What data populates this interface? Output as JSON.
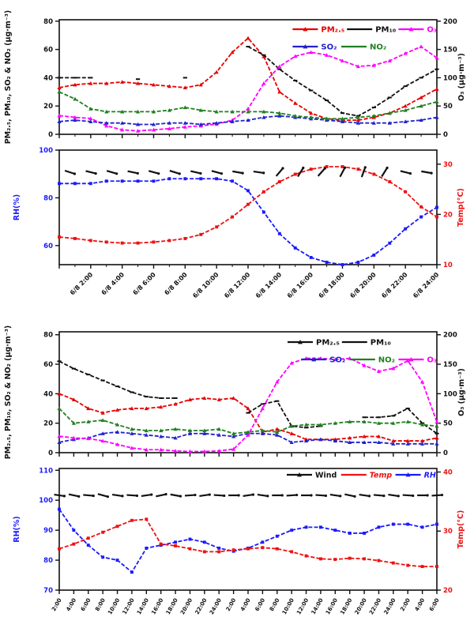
{
  "page": {
    "background": "#ffffff"
  },
  "chart_data": [
    {
      "id": "pollutants-day1",
      "type": "line",
      "title": "",
      "x_tick_labels": [
        "",
        "6/8 2:00",
        "6/8 4:00",
        "6/8 6:00",
        "6/8 8:00",
        "6/8 10:00",
        "6/8 12:00",
        "6/8 14:00",
        "6/8 16:00",
        "6/8 18:00",
        "6/8 20:00",
        "6/8 22:00",
        "6/8 24:00"
      ],
      "left_axis": {
        "title": "PM₂.₅, PM₁₀, SO₂ & NO₂ (μg·m⁻³)",
        "color": "#111111",
        "min": 0,
        "max": 81,
        "ticks": [
          0,
          20,
          40,
          60,
          80
        ]
      },
      "right_axis": {
        "title": "O₃ (μg·m⁻³)",
        "color": "#111111",
        "min": 0,
        "max": 202.5,
        "ticks": [
          0,
          50,
          100,
          150,
          200
        ]
      },
      "series": [
        {
          "name": "PM₂.₅",
          "axis": "left",
          "color": "#e60000",
          "marker": "tri",
          "values": [
            33,
            35,
            36,
            36,
            37,
            36,
            35,
            34,
            33,
            35,
            44,
            58,
            68,
            55,
            30,
            22,
            15,
            11,
            10,
            10,
            12,
            15,
            20,
            26,
            32
          ]
        },
        {
          "name": "PM₁₀",
          "axis": "left",
          "color": "#111111",
          "marker": "dash",
          "values": [
            40,
            40,
            40,
            null,
            null,
            39,
            null,
            null,
            40,
            null,
            null,
            null,
            62,
            56,
            46,
            38,
            31,
            24,
            15,
            13,
            19,
            26,
            34,
            40,
            46
          ]
        },
        {
          "name": "O₃",
          "axis": "right",
          "color": "#ff00ff",
          "marker": "tri",
          "values": [
            33,
            30,
            28,
            15,
            8,
            6,
            8,
            10,
            13,
            15,
            18,
            25,
            45,
            90,
            120,
            138,
            145,
            140,
            130,
            120,
            122,
            130,
            143,
            155,
            135
          ]
        },
        {
          "name": "SO₂",
          "axis": "left",
          "color": "#2222cc",
          "marker": "tri",
          "values": [
            9,
            10,
            9,
            8,
            8,
            7,
            7,
            8,
            8,
            7,
            8,
            9,
            10,
            12,
            13,
            12,
            11,
            10,
            9,
            8,
            8,
            8,
            9,
            10,
            12
          ]
        },
        {
          "name": "NO₂",
          "axis": "left",
          "color": "#208020",
          "marker": "tri",
          "values": [
            30,
            25,
            18,
            16,
            16,
            16,
            16,
            17,
            19,
            17,
            16,
            16,
            16,
            16,
            15,
            13,
            12,
            11,
            11,
            12,
            13,
            15,
            17,
            20,
            23
          ]
        }
      ],
      "legend": {
        "rows": [
          {
            "items": [
              {
                "label": "PM₂.₅",
                "color": "#e60000",
                "marker": "tri"
              },
              {
                "label": "PM₁₀",
                "color": "#111111",
                "marker": "none"
              },
              {
                "label": "O₃",
                "color": "#ff00ff",
                "marker": "tri"
              }
            ]
          },
          {
            "items": [
              {
                "label": "SO₂",
                "color": "#2222cc",
                "marker": "tri"
              },
              {
                "label": "NO₂",
                "color": "#208020",
                "marker": "none"
              }
            ]
          }
        ]
      }
    },
    {
      "id": "meteorology-day1",
      "type": "line",
      "x_tick_labels": [
        "",
        "6/8 2:00",
        "6/8 4:00",
        "6/8 6:00",
        "6/8 8:00",
        "6/8 10:00",
        "6/8 12:00",
        "6/8 14:00",
        "6/8 16:00",
        "6/8 18:00",
        "6/8 20:00",
        "6/8 22:00",
        "6/8 24:00"
      ],
      "left_axis": {
        "title": "RH(%)",
        "color": "#1a1aff",
        "min": 52,
        "max": 100,
        "ticks": [
          60,
          80,
          100
        ]
      },
      "right_axis": {
        "title": "Temp(°C)",
        "color": "#ee1111",
        "min": 10,
        "max": 32.8,
        "ticks": [
          10,
          20,
          30
        ]
      },
      "series": [
        {
          "name": "RH",
          "axis": "left",
          "color": "#1a1aff",
          "marker": "sq",
          "values": [
            86,
            86,
            86,
            87,
            87,
            87,
            87,
            88,
            88,
            88,
            88,
            87,
            83,
            74,
            65,
            59,
            55,
            53,
            52,
            53,
            56,
            61,
            67,
            72,
            76
          ]
        },
        {
          "name": "Temp",
          "axis": "right",
          "color": "#ee1111",
          "marker": "sq",
          "values": [
            15.5,
            15.2,
            14.8,
            14.5,
            14.3,
            14.3,
            14.5,
            14.8,
            15.2,
            16,
            17.5,
            19.5,
            22,
            24.5,
            26.5,
            28,
            29,
            29.5,
            29.5,
            29,
            28,
            26.5,
            24.5,
            21.5,
            19.5
          ]
        }
      ],
      "wind_arrows": {
        "color": "#111111",
        "angles": [
          -18,
          -14,
          -16,
          -12,
          -15,
          -17,
          -13,
          -15,
          -10,
          -8,
          50,
          58,
          48,
          62,
          70,
          58,
          -14,
          -10
        ]
      }
    },
    {
      "id": "pollutants-day2",
      "type": "line",
      "x_tick_labels": [
        "2:00",
        "4:00",
        "6:00",
        "8:00",
        "10:00",
        "12:00",
        "14:00",
        "16:00",
        "18:00",
        "20:00",
        "22:00",
        "24:00",
        "2:00",
        "4:00",
        "6:00",
        "8:00",
        "10:00",
        "12:00",
        "14:00",
        "16:00",
        "18:00",
        "20:00",
        "22:00",
        "24:00",
        "2:00",
        "4:00",
        "6:00"
      ],
      "left_axis": {
        "title": "PM₂.₅, PM₁₀, SO₂ & NO₂ (μg·m⁻³)",
        "color": "#111111",
        "min": 0,
        "max": 82,
        "ticks": [
          0,
          20,
          40,
          60,
          80
        ]
      },
      "right_axis": {
        "title": "O₃ (μg·m⁻³)",
        "color": "#111111",
        "min": 0,
        "max": 205,
        "ticks": [
          0,
          50,
          100,
          150,
          200
        ]
      },
      "series": [
        {
          "name": "PM₂.₅",
          "axis": "left",
          "color": "#e60000",
          "marker": "tri",
          "values": [
            40,
            36,
            30,
            27,
            29,
            30,
            30,
            31,
            33,
            36,
            37,
            36,
            37,
            30,
            14,
            16,
            13,
            9,
            9,
            9,
            10,
            11,
            11,
            8,
            8,
            8,
            10
          ]
        },
        {
          "name": "PM₁₀",
          "axis": "left",
          "color": "#111111",
          "marker": "dash",
          "values": [
            62,
            57,
            53,
            49,
            45,
            41,
            38,
            37,
            37,
            null,
            null,
            null,
            null,
            27,
            33,
            35,
            18,
            17,
            18,
            null,
            null,
            24,
            24,
            25,
            30,
            20,
            13
          ]
        },
        {
          "name": "SO₂",
          "axis": "left",
          "color": "#2222cc",
          "marker": "tri",
          "values": [
            7,
            9,
            10,
            13,
            14,
            13,
            12,
            11,
            10,
            13,
            13,
            12,
            11,
            13,
            13,
            12,
            7,
            8,
            9,
            8,
            7,
            7,
            7,
            6,
            6,
            6,
            6
          ]
        },
        {
          "name": "NO₂",
          "axis": "left",
          "color": "#208020",
          "marker": "tri",
          "values": [
            30,
            20,
            21,
            22,
            19,
            16,
            15,
            15,
            16,
            15,
            15,
            16,
            13,
            14,
            15,
            14,
            18,
            19,
            19,
            20,
            21,
            21,
            20,
            20,
            21,
            19,
            18
          ]
        },
        {
          "name": "O₃",
          "axis": "right",
          "color": "#ff00ff",
          "marker": "tri",
          "values": [
            28,
            25,
            24,
            20,
            14,
            8,
            5,
            5,
            3,
            2,
            2,
            3,
            6,
            30,
            75,
            120,
            152,
            160,
            160,
            158,
            160,
            148,
            138,
            143,
            156,
            120,
            52
          ]
        }
      ],
      "legend": {
        "rows": [
          {
            "items": [
              {
                "label": "PM₂.₅",
                "color": "#111111",
                "marker": "tri"
              },
              {
                "label": "PM₁₀",
                "color": "#111111",
                "marker": "none"
              }
            ]
          },
          {
            "items": [
              {
                "label": "SO₂",
                "color": "#2222cc",
                "marker": "tri"
              },
              {
                "label": "NO₂",
                "color": "#208020",
                "marker": "none"
              },
              {
                "label": "O₃",
                "color": "#ff00ff",
                "marker": "tri"
              }
            ]
          }
        ]
      }
    },
    {
      "id": "meteorology-day2",
      "type": "line",
      "x_tick_labels": [
        "2:00",
        "4:00",
        "6:00",
        "8:00",
        "10:00",
        "12:00",
        "14:00",
        "16:00",
        "18:00",
        "20:00",
        "22:00",
        "24:00",
        "2:00",
        "4:00",
        "6:00",
        "8:00",
        "10:00",
        "12:00",
        "14:00",
        "16:00",
        "18:00",
        "20:00",
        "22:00",
        "24:00",
        "2:00",
        "4:00",
        "6:00"
      ],
      "left_axis": {
        "title": "RH(%)",
        "color": "#1a1aff",
        "min": 70,
        "max": 110.6,
        "ticks": [
          70,
          80,
          90,
          100,
          110
        ]
      },
      "right_axis": {
        "title": "Temp(°C)",
        "color": "#ee1111",
        "min": 20,
        "max": 40.6,
        "ticks": [
          20,
          30,
          40
        ]
      },
      "series": [
        {
          "name": "RH",
          "axis": "left",
          "color": "#1a1aff",
          "marker": "sq",
          "values": [
            97,
            90,
            85,
            81,
            80,
            76,
            84,
            85,
            86,
            87,
            86,
            84,
            83,
            84,
            86,
            88,
            90,
            91,
            91,
            90,
            89,
            89,
            91,
            92,
            92,
            91,
            92
          ]
        },
        {
          "name": "Temp",
          "axis": "right",
          "color": "#ee1111",
          "marker": "sq",
          "values": [
            27,
            27.8,
            28.8,
            29.8,
            30.8,
            31.8,
            32,
            27.8,
            27.5,
            27,
            26.5,
            26.5,
            26.8,
            27,
            27.2,
            27,
            26.5,
            25.8,
            25.3,
            25.2,
            25.4,
            25.3,
            25,
            24.6,
            24.2,
            24,
            24
          ]
        }
      ],
      "wind_arrows": {
        "color": "#111111",
        "angles": [
          -8,
          -12,
          -5,
          -15,
          -8,
          -4,
          8,
          12,
          -10,
          4,
          8,
          -4,
          0,
          8,
          -8,
          0,
          4,
          0,
          -4,
          -8,
          -12,
          -8,
          -5,
          -8,
          -4,
          0,
          4
        ]
      },
      "legend": {
        "rows": [
          {
            "items": [
              {
                "label": "Wind",
                "color": "#111111",
                "marker": "tri",
                "italic": false
              },
              {
                "label": "Temp",
                "color": "#ee1111",
                "marker": "none",
                "italic": true
              },
              {
                "label": "RH",
                "color": "#1a1aff",
                "marker": "tri",
                "italic": true
              }
            ]
          }
        ]
      }
    }
  ]
}
